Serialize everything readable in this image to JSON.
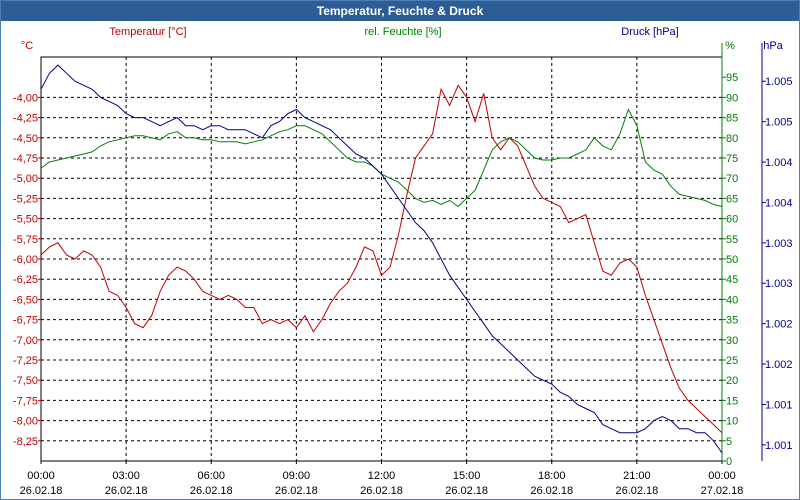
{
  "chart_data": {
    "type": "line",
    "title": "Temperatur, Feuchte & Druck",
    "x_ticks": [
      {
        "time": "00:00",
        "date": "26.02.18"
      },
      {
        "time": "03:00",
        "date": "26.02.18"
      },
      {
        "time": "06:00",
        "date": "26.02.18"
      },
      {
        "time": "09:00",
        "date": "26.02.18"
      },
      {
        "time": "12:00",
        "date": "26.02.18"
      },
      {
        "time": "15:00",
        "date": "26.02.18"
      },
      {
        "time": "18:00",
        "date": "26.02.18"
      },
      {
        "time": "21:00",
        "date": "26.02.18"
      },
      {
        "time": "00:00",
        "date": "27.02.18"
      }
    ],
    "x_range_hours": [
      0,
      24
    ],
    "axes": {
      "temperature": {
        "label": "Temperatur [°C]",
        "unit": "°C",
        "color": "#c00000",
        "range": [
          -8.5,
          -3.5
        ],
        "tick_labels": [
          "-4,00",
          "-4,25",
          "-4,50",
          "-4,75",
          "-5,00",
          "-5,25",
          "-5,50",
          "-5,75",
          "-6,00",
          "-6,25",
          "-6,50",
          "-6,75",
          "-7,00",
          "-7,25",
          "-7,50",
          "-7,75",
          "-8,00",
          "-8,25"
        ],
        "tick_values": [
          -4.0,
          -4.25,
          -4.5,
          -4.75,
          -5.0,
          -5.25,
          -5.5,
          -5.75,
          -6.0,
          -6.25,
          -6.5,
          -6.75,
          -7.0,
          -7.25,
          -7.5,
          -7.75,
          -8.0,
          -8.25
        ]
      },
      "humidity": {
        "label": "rel. Feuchte [%]",
        "unit": "%",
        "color": "#008000",
        "range": [
          0,
          100
        ],
        "tick_labels": [
          "95",
          "90",
          "85",
          "80",
          "75",
          "70",
          "65",
          "60",
          "55",
          "50",
          "45",
          "40",
          "35",
          "30",
          "25",
          "20",
          "15",
          "10",
          "5",
          "0"
        ],
        "tick_values": [
          95,
          90,
          85,
          80,
          75,
          70,
          65,
          60,
          55,
          50,
          45,
          40,
          35,
          30,
          25,
          20,
          15,
          10,
          5,
          0
        ]
      },
      "pressure": {
        "label": "Druck [hPa]",
        "unit": "hPa",
        "color": "#00008b",
        "range": [
          1000.6,
          1005.6
        ],
        "tick_labels": [
          "1.005",
          "1.005",
          "1.004",
          "1.004",
          "1.003",
          "1.003",
          "1.002",
          "1.002",
          "1.001",
          "1.001"
        ],
        "tick_values": [
          1005.3,
          1004.8,
          1004.3,
          1003.8,
          1003.3,
          1002.8,
          1002.3,
          1001.8,
          1001.3,
          1000.8
        ]
      }
    },
    "series": [
      {
        "name": "Temperatur [°C]",
        "axis": "temperature",
        "color": "#c00000",
        "x": [
          0,
          0.3,
          0.6,
          0.9,
          1.2,
          1.5,
          1.8,
          2.1,
          2.4,
          2.7,
          3.0,
          3.3,
          3.6,
          3.9,
          4.2,
          4.5,
          4.8,
          5.1,
          5.4,
          5.7,
          6.0,
          6.3,
          6.6,
          6.9,
          7.2,
          7.5,
          7.8,
          8.1,
          8.4,
          8.7,
          9.0,
          9.3,
          9.6,
          9.9,
          10.2,
          10.5,
          10.8,
          11.1,
          11.4,
          11.7,
          12.0,
          12.3,
          12.6,
          12.9,
          13.2,
          13.5,
          13.8,
          14.1,
          14.4,
          14.7,
          15.0,
          15.3,
          15.6,
          15.9,
          16.2,
          16.5,
          16.8,
          17.1,
          17.4,
          17.7,
          18.0,
          18.3,
          18.6,
          18.9,
          19.2,
          19.5,
          19.8,
          20.1,
          20.4,
          20.7,
          21.0,
          21.3,
          21.6,
          21.9,
          22.2,
          22.5,
          22.8,
          23.1,
          23.4,
          23.7,
          24.0
        ],
        "y": [
          -5.95,
          -5.85,
          -5.8,
          -5.95,
          -6.0,
          -5.9,
          -5.95,
          -6.1,
          -6.4,
          -6.45,
          -6.6,
          -6.8,
          -6.85,
          -6.7,
          -6.4,
          -6.2,
          -6.1,
          -6.15,
          -6.25,
          -6.4,
          -6.45,
          -6.5,
          -6.45,
          -6.5,
          -6.6,
          -6.6,
          -6.8,
          -6.75,
          -6.8,
          -6.75,
          -6.85,
          -6.7,
          -6.9,
          -6.75,
          -6.55,
          -6.4,
          -6.3,
          -6.1,
          -5.85,
          -5.9,
          -6.2,
          -6.1,
          -5.7,
          -5.2,
          -4.75,
          -4.6,
          -4.45,
          -3.9,
          -4.1,
          -3.85,
          -4.0,
          -4.3,
          -3.95,
          -4.5,
          -4.65,
          -4.5,
          -4.6,
          -4.85,
          -5.1,
          -5.25,
          -5.3,
          -5.35,
          -5.55,
          -5.5,
          -5.45,
          -5.8,
          -6.15,
          -6.2,
          -6.05,
          -6.0,
          -6.1,
          -6.45,
          -6.75,
          -7.05,
          -7.35,
          -7.6,
          -7.75,
          -7.85,
          -7.95,
          -8.05,
          -8.15
        ]
      },
      {
        "name": "rel. Feuchte [%]",
        "axis": "humidity",
        "color": "#008000",
        "x": [
          0,
          0.3,
          0.6,
          0.9,
          1.2,
          1.5,
          1.8,
          2.1,
          2.4,
          2.7,
          3.0,
          3.3,
          3.6,
          3.9,
          4.2,
          4.5,
          4.8,
          5.1,
          5.4,
          5.7,
          6.0,
          6.3,
          6.6,
          6.9,
          7.2,
          7.5,
          7.8,
          8.1,
          8.4,
          8.7,
          9.0,
          9.3,
          9.6,
          9.9,
          10.2,
          10.5,
          10.8,
          11.1,
          11.4,
          11.7,
          12.0,
          12.3,
          12.6,
          12.9,
          13.2,
          13.5,
          13.8,
          14.1,
          14.4,
          14.7,
          15.0,
          15.3,
          15.6,
          15.9,
          16.2,
          16.5,
          16.8,
          17.1,
          17.4,
          17.7,
          18.0,
          18.3,
          18.6,
          18.9,
          19.2,
          19.5,
          19.8,
          20.1,
          20.4,
          20.7,
          21.0,
          21.3,
          21.6,
          21.9,
          22.2,
          22.5,
          22.8,
          23.1,
          23.4,
          23.7,
          24.0
        ],
        "y": [
          72.5,
          74,
          74.5,
          75,
          75.5,
          76,
          76.5,
          78,
          79,
          79.5,
          80,
          80.5,
          80.5,
          80,
          79.5,
          81,
          81.5,
          80,
          80,
          79.5,
          79.5,
          79,
          79,
          79,
          78.5,
          79,
          79.5,
          80.5,
          81.5,
          82,
          83,
          83,
          82,
          81,
          79,
          77,
          75,
          74,
          74,
          73,
          71,
          70,
          69,
          67,
          65,
          64,
          64.5,
          63.5,
          64.5,
          63,
          65,
          67,
          72,
          77,
          79,
          80,
          79,
          77,
          75,
          74.5,
          74.5,
          75,
          75,
          76,
          77,
          80,
          78,
          77,
          81,
          87,
          83,
          74,
          72,
          71,
          68,
          66,
          65.5,
          65,
          64.5,
          63.5,
          63
        ]
      },
      {
        "name": "Druck [hPa]",
        "axis": "pressure",
        "color": "#00008b",
        "x": [
          0,
          0.3,
          0.6,
          0.9,
          1.2,
          1.5,
          1.8,
          2.1,
          2.4,
          2.7,
          3.0,
          3.3,
          3.6,
          3.9,
          4.2,
          4.5,
          4.8,
          5.1,
          5.4,
          5.7,
          6.0,
          6.3,
          6.6,
          6.9,
          7.2,
          7.5,
          7.8,
          8.1,
          8.4,
          8.7,
          9.0,
          9.3,
          9.6,
          9.9,
          10.2,
          10.5,
          10.8,
          11.1,
          11.4,
          11.7,
          12.0,
          12.3,
          12.6,
          12.9,
          13.2,
          13.5,
          13.8,
          14.1,
          14.4,
          14.7,
          15.0,
          15.3,
          15.6,
          15.9,
          16.2,
          16.5,
          16.8,
          17.1,
          17.4,
          17.7,
          18.0,
          18.3,
          18.6,
          18.9,
          19.2,
          19.5,
          19.8,
          20.1,
          20.4,
          20.7,
          21.0,
          21.3,
          21.6,
          21.9,
          22.2,
          22.5,
          22.8,
          23.1,
          23.4,
          23.7,
          24.0
        ],
        "y": [
          1005.2,
          1005.4,
          1005.5,
          1005.4,
          1005.3,
          1005.25,
          1005.2,
          1005.1,
          1005.05,
          1005.0,
          1004.9,
          1004.85,
          1004.85,
          1004.8,
          1004.75,
          1004.8,
          1004.85,
          1004.75,
          1004.75,
          1004.7,
          1004.75,
          1004.75,
          1004.7,
          1004.7,
          1004.7,
          1004.65,
          1004.6,
          1004.75,
          1004.8,
          1004.9,
          1004.95,
          1004.85,
          1004.8,
          1004.75,
          1004.7,
          1004.6,
          1004.5,
          1004.4,
          1004.35,
          1004.25,
          1004.15,
          1004.0,
          1003.85,
          1003.7,
          1003.55,
          1003.45,
          1003.3,
          1003.1,
          1002.9,
          1002.75,
          1002.6,
          1002.45,
          1002.3,
          1002.15,
          1002.05,
          1001.95,
          1001.85,
          1001.75,
          1001.65,
          1001.6,
          1001.55,
          1001.45,
          1001.4,
          1001.3,
          1001.25,
          1001.2,
          1001.05,
          1001.0,
          1000.95,
          1000.95,
          1000.95,
          1001.0,
          1001.1,
          1001.15,
          1001.1,
          1001.0,
          1001.0,
          1000.95,
          1000.95,
          1000.85,
          1000.7
        ]
      }
    ]
  }
}
